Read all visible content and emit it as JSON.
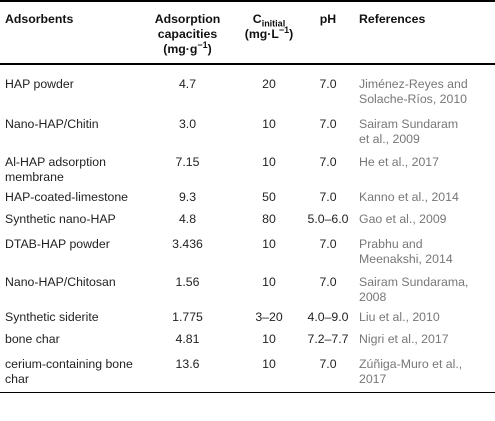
{
  "headers": {
    "adsorbents": "Adsorbents",
    "capacity_line1": "Adsorption",
    "capacity_line2": "capacities",
    "capacity_unit_pre": "(mg·g",
    "capacity_unit_sup": "−1",
    "capacity_unit_post": ")",
    "cinit_main": "C",
    "cinit_sub": "initial",
    "cinit_unit_pre": "(mg·L",
    "cinit_unit_sup": "−1",
    "cinit_unit_post": ")",
    "ph": "pH",
    "references": "References"
  },
  "rows": [
    {
      "adsorbent": "HAP powder",
      "capacity": "4.7",
      "c_initial": "20",
      "ph": "7.0",
      "ref_line1": "Jiménez-Reyes and",
      "ref_line2": "Solache-Ríos, 2010"
    },
    {
      "adsorbent": "Nano-HAP/Chitin",
      "capacity": "3.0",
      "c_initial": "10",
      "ph": "7.0",
      "ref_line1": "Sairam Sundaram",
      "ref_line2": "et al., 2009"
    },
    {
      "adsorbent": "Al-HAP adsorption",
      "adsorbent_line2": "membrane",
      "capacity": "7.15",
      "c_initial": "10",
      "ph": "7.0",
      "ref_line1": "He et al., 2017",
      "ref_line2": ""
    },
    {
      "adsorbent": "HAP-coated-limestone",
      "capacity": "9.3",
      "c_initial": "50",
      "ph": "7.0",
      "ref_line1": "Kanno et al., 2014",
      "ref_line2": ""
    },
    {
      "adsorbent": "Synthetic nano-HAP",
      "capacity": "4.8",
      "c_initial": "80",
      "ph": "5.0–6.0",
      "ref_line1": "Gao et al., 2009",
      "ref_line2": ""
    },
    {
      "adsorbent": "DTAB-HAP powder",
      "capacity": "3.436",
      "c_initial": "10",
      "ph": "7.0",
      "ref_line1": "Prabhu and",
      "ref_line2": "Meenakshi, 2014"
    },
    {
      "adsorbent": "Nano-HAP/Chitosan",
      "capacity": "1.56",
      "c_initial": "10",
      "ph": "7.0",
      "ref_line1": "Sairam Sundarama,",
      "ref_line2": "2008"
    },
    {
      "adsorbent": "Synthetic siderite",
      "capacity": "1.775",
      "c_initial": "3–20",
      "ph": "4.0–9.0",
      "ref_line1": "Liu et al., 2010",
      "ref_line2": ""
    },
    {
      "adsorbent": "bone char",
      "capacity": "4.81",
      "c_initial": "10",
      "ph": "7.2–7.7",
      "ref_line1": "Nigri et al., 2017",
      "ref_line2": ""
    },
    {
      "adsorbent": "cerium-containing bone",
      "adsorbent_line2": "char",
      "capacity": "13.6",
      "c_initial": "10",
      "ph": "7.0",
      "ref_line1": "Zúñiga-Muro et al.,",
      "ref_line2": "2017"
    }
  ]
}
